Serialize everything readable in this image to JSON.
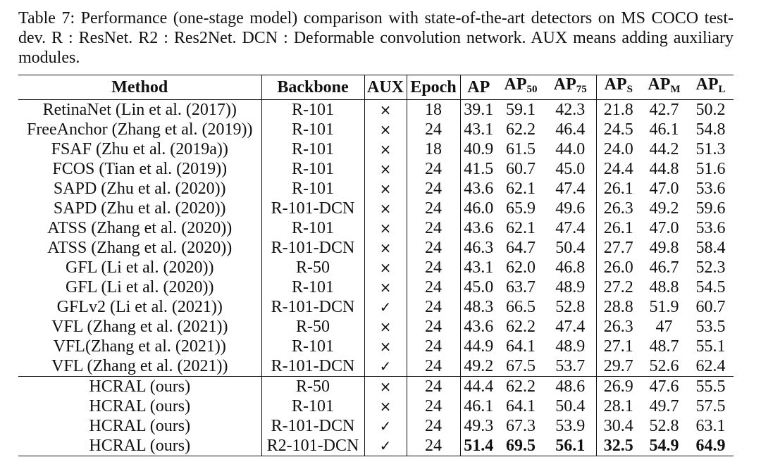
{
  "caption": "Table 7: Performance (one-stage model) comparison with state-of-the-art detectors on MS COCO test-dev. R : ResNet. R2 : Res2Net. DCN : Deformable convolution network. AUX means adding auxiliary modules.",
  "headers": {
    "method": "Method",
    "backbone": "Backbone",
    "aux": "AUX",
    "epoch": "Epoch",
    "ap": "AP",
    "ap50_base": "AP",
    "ap50_sub": "50",
    "ap75_base": "AP",
    "ap75_sub": "75",
    "aps_base": "AP",
    "aps_sub": "S",
    "apm_base": "AP",
    "apm_sub": "M",
    "apl_base": "AP",
    "apl_sub": "L"
  },
  "aux_symbols": {
    "no": "×",
    "yes": "✓"
  },
  "rows": [
    {
      "method": "RetinaNet (Lin et al. (2017))",
      "backbone": "R-101",
      "aux": "×",
      "epoch": "18",
      "ap": "39.1",
      "ap50": "59.1",
      "ap75": "42.3",
      "aps": "21.8",
      "apm": "42.7",
      "apl": "50.2"
    },
    {
      "method": "FreeAnchor (Zhang et al. (2019))",
      "backbone": "R-101",
      "aux": "×",
      "epoch": "24",
      "ap": "43.1",
      "ap50": "62.2",
      "ap75": "46.4",
      "aps": "24.5",
      "apm": "46.1",
      "apl": "54.8"
    },
    {
      "method": "FSAF (Zhu et al. (2019a))",
      "backbone": "R-101",
      "aux": "×",
      "epoch": "18",
      "ap": "40.9",
      "ap50": "61.5",
      "ap75": "44.0",
      "aps": "24.0",
      "apm": "44.2",
      "apl": "51.3"
    },
    {
      "method": "FCOS (Tian et al. (2019))",
      "backbone": "R-101",
      "aux": "×",
      "epoch": "24",
      "ap": "41.5",
      "ap50": "60.7",
      "ap75": "45.0",
      "aps": "24.4",
      "apm": "44.8",
      "apl": "51.6"
    },
    {
      "method": "SAPD (Zhu et al. (2020))",
      "backbone": "R-101",
      "aux": "×",
      "epoch": "24",
      "ap": "43.6",
      "ap50": "62.1",
      "ap75": "47.4",
      "aps": "26.1",
      "apm": "47.0",
      "apl": "53.6"
    },
    {
      "method": "SAPD (Zhu et al. (2020))",
      "backbone": "R-101-DCN",
      "aux": "×",
      "epoch": "24",
      "ap": "46.0",
      "ap50": "65.9",
      "ap75": "49.6",
      "aps": "26.3",
      "apm": "49.2",
      "apl": "59.6"
    },
    {
      "method": "ATSS (Zhang et al. (2020))",
      "backbone": "R-101",
      "aux": "×",
      "epoch": "24",
      "ap": "43.6",
      "ap50": "62.1",
      "ap75": "47.4",
      "aps": "26.1",
      "apm": "47.0",
      "apl": "53.6"
    },
    {
      "method": "ATSS (Zhang et al. (2020))",
      "backbone": "R-101-DCN",
      "aux": "×",
      "epoch": "24",
      "ap": "46.3",
      "ap50": "64.7",
      "ap75": "50.4",
      "aps": "27.7",
      "apm": "49.8",
      "apl": "58.4"
    },
    {
      "method": "GFL (Li et al. (2020))",
      "backbone": "R-50",
      "aux": "×",
      "epoch": "24",
      "ap": "43.1",
      "ap50": "62.0",
      "ap75": "46.8",
      "aps": "26.0",
      "apm": "46.7",
      "apl": "52.3"
    },
    {
      "method": "GFL (Li et al. (2020))",
      "backbone": "R-101",
      "aux": "×",
      "epoch": "24",
      "ap": "45.0",
      "ap50": "63.7",
      "ap75": "48.9",
      "aps": "27.2",
      "apm": "48.8",
      "apl": "54.5"
    },
    {
      "method": "GFLv2 (Li et al. (2021))",
      "backbone": "R-101-DCN",
      "aux": "✓",
      "epoch": "24",
      "ap": "48.3",
      "ap50": "66.5",
      "ap75": "52.8",
      "aps": "28.8",
      "apm": "51.9",
      "apl": "60.7"
    },
    {
      "method": "VFL (Zhang et al. (2021))",
      "backbone": "R-50",
      "aux": "×",
      "epoch": "24",
      "ap": "43.6",
      "ap50": "62.2",
      "ap75": "47.4",
      "aps": "26.3",
      "apm": "47",
      "apl": "53.5"
    },
    {
      "method": "VFL(Zhang et al. (2021))",
      "backbone": "R-101",
      "aux": "×",
      "epoch": "24",
      "ap": "44.9",
      "ap50": "64.1",
      "ap75": "48.9",
      "aps": "27.1",
      "apm": "48.7",
      "apl": "55.1"
    },
    {
      "method": "VFL (Zhang et al. (2021))",
      "backbone": "R-101-DCN",
      "aux": "✓",
      "epoch": "24",
      "ap": "49.2",
      "ap50": "67.5",
      "ap75": "53.7",
      "aps": "29.7",
      "apm": "52.6",
      "apl": "62.4"
    },
    {
      "method": "HCRAL (ours)",
      "backbone": "R-50",
      "aux": "×",
      "epoch": "24",
      "ap": "44.4",
      "ap50": "62.2",
      "ap75": "48.6",
      "aps": "26.9",
      "apm": "47.6",
      "apl": "55.5"
    },
    {
      "method": "HCRAL (ours)",
      "backbone": "R-101",
      "aux": "×",
      "epoch": "24",
      "ap": "46.1",
      "ap50": "64.1",
      "ap75": "50.4",
      "aps": "28.1",
      "apm": "49.7",
      "apl": "57.5"
    },
    {
      "method": "HCRAL (ours)",
      "backbone": "R-101-DCN",
      "aux": "✓",
      "epoch": "24",
      "ap": "49.3",
      "ap50": "67.3",
      "ap75": "53.9",
      "aps": "30.4",
      "apm": "52.8",
      "apl": "63.1"
    },
    {
      "method": "HCRAL (ours)",
      "backbone": "R2-101-DCN",
      "aux": "✓",
      "epoch": "24",
      "ap": "51.4",
      "ap50": "69.5",
      "ap75": "56.1",
      "aps": "32.5",
      "apm": "54.9",
      "apl": "64.9"
    }
  ],
  "ours_group_start_index": 14,
  "best_row_index": 17
}
